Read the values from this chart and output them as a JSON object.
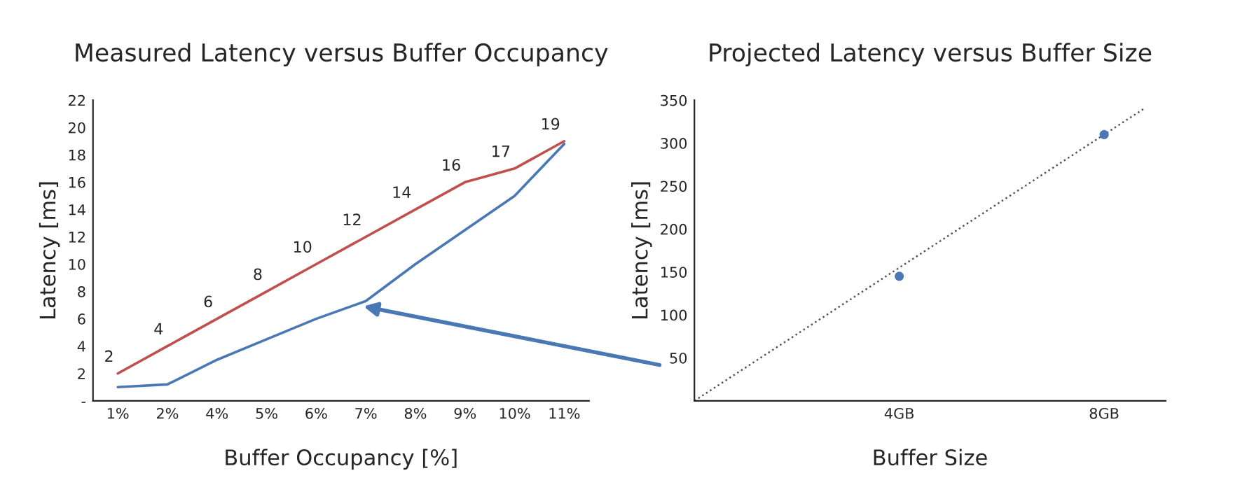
{
  "chart_data": [
    {
      "type": "line",
      "title": "Measured Latency versus Buffer Occupancy",
      "xlabel": "Buffer Occupancy [%]",
      "ylabel": "Latency [ms]",
      "categories": [
        "1%",
        "2%",
        "4%",
        "5%",
        "6%",
        "7%",
        "8%",
        "9%",
        "10%",
        "11%"
      ],
      "ylim": [
        0,
        22
      ],
      "yticks": [
        {
          "value": 0,
          "label": "-"
        },
        2,
        4,
        6,
        8,
        10,
        12,
        14,
        16,
        18,
        20,
        22
      ],
      "grid": false,
      "legend": false,
      "series": [
        {
          "color": "#c0504d",
          "values": [
            2,
            4,
            6,
            8,
            10,
            12,
            14,
            16,
            17,
            19
          ],
          "data_labels": true
        },
        {
          "color": "#4a78b5",
          "values": [
            1,
            1.2,
            3,
            4.5,
            6,
            7.3,
            10,
            12.5,
            15,
            18.8
          ]
        }
      ]
    },
    {
      "type": "line",
      "title": "Projected Latency versus Buffer Size",
      "xlabel": "Buffer Size",
      "ylabel": "Latency [ms]",
      "xlim": [
        0,
        9.2
      ],
      "xticks": [
        {
          "value": 4,
          "label": "4GB"
        },
        {
          "value": 8,
          "label": "8GB"
        }
      ],
      "ylim": [
        0,
        350
      ],
      "yticks": [
        {
          "value": 0,
          "label": null
        },
        50,
        100,
        150,
        200,
        250,
        300,
        350
      ],
      "grid": false,
      "legend": false,
      "series": [
        {
          "type": "line",
          "line_style": "dotted",
          "color": "#555555",
          "x": [
            0,
            8.8
          ],
          "values": [
            0,
            341
          ]
        },
        {
          "type": "scatter",
          "marker": "circle",
          "color": "#4a78b5",
          "x": [
            4,
            8
          ],
          "values": [
            145,
            310
          ]
        }
      ]
    }
  ]
}
